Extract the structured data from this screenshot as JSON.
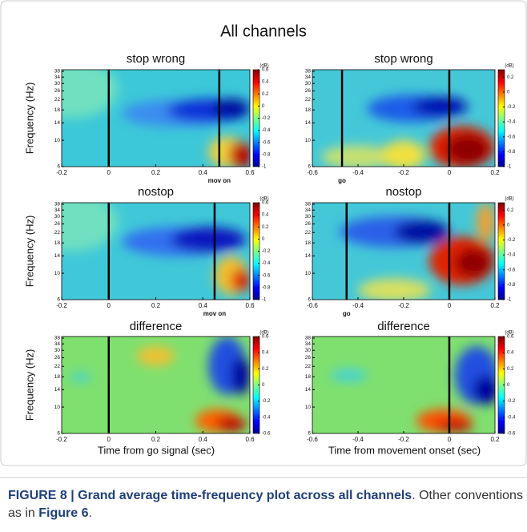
{
  "figure": {
    "title": "All channels",
    "y_label": "Frequency (Hz)",
    "x_labels": [
      "Time from go signal (sec)",
      "Time from movement onset (sec)"
    ],
    "panels": [
      {
        "title": "stop wrong",
        "xlim": [
          -0.2,
          0.6
        ],
        "xticks": [
          -0.2,
          0,
          0.2,
          0.4,
          0.6
        ],
        "yticks": [
          38,
          34,
          30,
          26,
          22,
          18,
          14,
          10,
          6
        ],
        "ylim": [
          6,
          38
        ],
        "clim": [
          -1,
          0.6
        ],
        "cticks": [
          0.6,
          0.4,
          0.2,
          0,
          -0.2,
          -0.4,
          -0.6,
          -0.8,
          -1
        ],
        "unit": "(dB)",
        "events": [
          {
            "value": 0
          },
          {
            "value": 0.47,
            "label": "mov on"
          }
        ]
      },
      {
        "title": "stop wrong",
        "xlim": [
          -0.6,
          0.2
        ],
        "xticks": [
          -0.6,
          -0.4,
          -0.2,
          0,
          0.2
        ],
        "yticks": [
          38,
          34,
          30,
          26,
          22,
          18,
          14,
          10,
          6
        ],
        "ylim": [
          6,
          38
        ],
        "clim": [
          -1,
          0.3
        ],
        "cticks": [
          0.2,
          0,
          -0.2,
          -0.4,
          -0.6,
          -0.8,
          -1
        ],
        "unit": "(dB)",
        "events": [
          {
            "value": -0.47,
            "label": "go"
          },
          {
            "value": 0
          }
        ]
      },
      {
        "title": "nostop",
        "xlim": [
          -0.2,
          0.6
        ],
        "xticks": [
          -0.2,
          0,
          0.2,
          0.4,
          0.6
        ],
        "yticks": [
          38,
          34,
          30,
          26,
          22,
          18,
          14,
          10,
          6
        ],
        "ylim": [
          6,
          38
        ],
        "clim": [
          -1,
          0.6
        ],
        "cticks": [
          0.6,
          0.4,
          0.2,
          0,
          -0.2,
          -0.4,
          -0.6,
          -0.8,
          -1
        ],
        "unit": "(dB)",
        "events": [
          {
            "value": 0
          },
          {
            "value": 0.45,
            "label": "mov on"
          }
        ]
      },
      {
        "title": "nostop",
        "xlim": [
          -0.6,
          0.2
        ],
        "xticks": [
          -0.6,
          -0.4,
          -0.2,
          0,
          0.2
        ],
        "yticks": [
          38,
          34,
          30,
          26,
          22,
          18,
          14,
          10,
          6
        ],
        "ylim": [
          6,
          38
        ],
        "clim": [
          -1,
          0.3
        ],
        "cticks": [
          0.2,
          0,
          -0.2,
          -0.4,
          -0.6,
          -0.8,
          -1
        ],
        "unit": "(dB)",
        "events": [
          {
            "value": -0.45,
            "label": "go"
          },
          {
            "value": 0
          }
        ]
      },
      {
        "title": "difference",
        "xlim": [
          -0.2,
          0.6
        ],
        "xticks": [
          -0.2,
          0,
          0.2,
          0.4,
          0.6
        ],
        "yticks": [
          38,
          34,
          30,
          26,
          22,
          18,
          14,
          10,
          6
        ],
        "ylim": [
          6,
          38
        ],
        "clim": [
          -0.6,
          0.6
        ],
        "cticks": [
          0.6,
          0.4,
          0.2,
          0,
          -0.2,
          -0.4,
          -0.6
        ],
        "unit": "(dB)",
        "events": [
          {
            "value": 0
          }
        ]
      },
      {
        "title": "difference",
        "xlim": [
          -0.6,
          0.2
        ],
        "xticks": [
          -0.6,
          -0.4,
          -0.2,
          0,
          0.2
        ],
        "yticks": [
          38,
          34,
          30,
          26,
          22,
          18,
          14,
          10,
          6
        ],
        "ylim": [
          6,
          38
        ],
        "clim": [
          -0.6,
          0.6
        ],
        "cticks": [
          0.6,
          0.4,
          0.2,
          0,
          -0.2,
          -0.4,
          -0.6
        ],
        "unit": "(dB)",
        "events": [
          {
            "value": 0
          }
        ]
      }
    ]
  },
  "caption": {
    "label": "FIGURE 8 | Grand average time-frequency plot across all channels",
    "text": ". Other conventions as in ",
    "ref": "Figure 6",
    "end": "."
  }
}
